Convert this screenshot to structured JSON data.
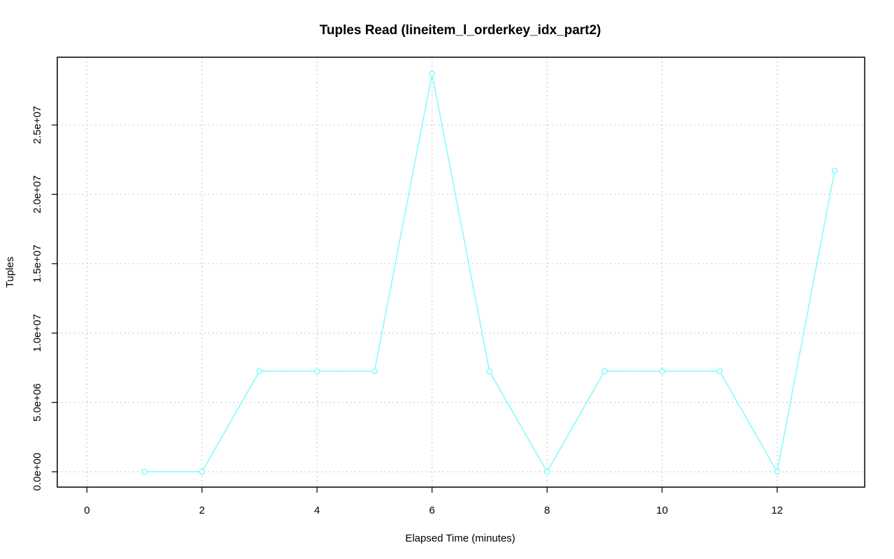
{
  "chart_data": {
    "type": "line",
    "title": "Tuples Read (lineitem_l_orderkey_idx_part2)",
    "xlabel": "Elapsed Time (minutes)",
    "ylabel": "Tuples",
    "xlim": [
      0,
      13
    ],
    "ylim": [
      0,
      28700000
    ],
    "x_ticks": [
      0,
      2,
      4,
      6,
      8,
      10,
      12
    ],
    "x_tick_labels": [
      "0",
      "2",
      "4",
      "6",
      "8",
      "10",
      "12"
    ],
    "y_ticks": [
      0,
      5000000,
      10000000,
      15000000,
      20000000,
      25000000
    ],
    "y_tick_labels": [
      "0.0e+00",
      "5.0e+06",
      "1.0e+07",
      "1.5e+07",
      "2.0e+07",
      "2.5e+07"
    ],
    "grid": true,
    "colors": {
      "series": "#7ffcfc",
      "grid": "#bdbdbd",
      "axis": "#000000"
    },
    "series": [
      {
        "x": [
          1,
          2,
          3,
          4,
          5,
          6,
          7,
          8,
          9,
          10,
          11,
          12,
          13
        ],
        "values": [
          0,
          0,
          7250000,
          7230000,
          7250000,
          28700000,
          7230000,
          0,
          7250000,
          7240000,
          7250000,
          0,
          21700000
        ]
      }
    ]
  }
}
